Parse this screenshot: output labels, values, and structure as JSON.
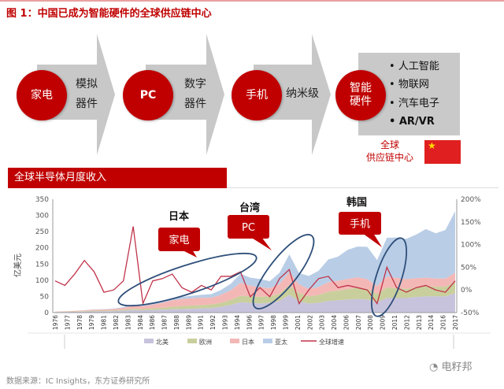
{
  "title": "图 1：中国已成为智能硬件的全球供应链中心",
  "flow": {
    "stages": [
      {
        "circle": "家电",
        "desc_line1": "模拟",
        "desc_line2": "器件"
      },
      {
        "circle": "PC",
        "desc_line1": "数字",
        "desc_line2": "器件"
      },
      {
        "circle": "手机",
        "desc_line1": "纳米级",
        "desc_line2": ""
      }
    ],
    "final_circle_line1": "智能",
    "final_circle_line2": "硬件",
    "bullets": [
      "人工智能",
      "物联网",
      "汽车电子",
      "AR/VR"
    ],
    "hub_line1": "全球",
    "hub_line2": "供应链中心",
    "flag_color": "#e02020"
  },
  "banner": "全球半导体月度收入",
  "source": "数据来源：IC Insights，东方证券研究所",
  "watermark": "电籽邦",
  "colors": {
    "accent": "#c00000",
    "americas": "#c7c3dc",
    "europe": "#c9cf9c",
    "japan": "#f3b8b6",
    "asia": "#b9cde6",
    "growth": "#c0334a",
    "ellipse": "#2f4f7a"
  },
  "chart_data": {
    "type": "area",
    "title": "全球半导体月度收入",
    "ylabel": "亿美元",
    "ylim": [
      0,
      350
    ],
    "yticks": [
      "0",
      "50",
      "100",
      "150",
      "200",
      "250",
      "300",
      "350"
    ],
    "y2lim": [
      -50,
      200
    ],
    "y2ticks": [
      "-50%",
      "0%",
      "50%",
      "100%",
      "150%",
      "200%"
    ],
    "x_range": [
      1976,
      2017
    ],
    "xtick_labels": [
      "1976",
      "1977",
      "1978",
      "1979",
      "1981",
      "1982",
      "1983",
      "1984",
      "1986",
      "1987",
      "1988",
      "1989",
      "1991",
      "1992",
      "1993",
      "1994",
      "1996",
      "1997",
      "1998",
      "1999",
      "2001",
      "2002",
      "2003",
      "2004",
      "2006",
      "2007",
      "2008",
      "2009",
      "2011",
      "2012",
      "2013",
      "2014",
      "2016",
      "2017"
    ],
    "years": [
      1976,
      1977,
      1978,
      1979,
      1980,
      1981,
      1982,
      1983,
      1984,
      1985,
      1986,
      1987,
      1988,
      1989,
      1990,
      1991,
      1992,
      1993,
      1994,
      1995,
      1996,
      1997,
      1998,
      1999,
      2000,
      2001,
      2002,
      2003,
      2004,
      2005,
      2006,
      2007,
      2008,
      2009,
      2010,
      2011,
      2012,
      2013,
      2014,
      2015,
      2016,
      2017
    ],
    "series": [
      {
        "name": "北美",
        "axis": "left",
        "stacked": true,
        "values": [
          1.5,
          2,
          2.5,
          3,
          4,
          4,
          4.5,
          6,
          8,
          7,
          8,
          9,
          10,
          11,
          12,
          13,
          14,
          18,
          24,
          32,
          30,
          28,
          30,
          36,
          55,
          35,
          28,
          30,
          36,
          38,
          40,
          42,
          40,
          32,
          45,
          45,
          45,
          48,
          50,
          50,
          50,
          60
        ]
      },
      {
        "name": "欧洲",
        "axis": "left",
        "stacked": true,
        "values": [
          0.5,
          0.8,
          1,
          1.5,
          2,
          2,
          2.5,
          3,
          4,
          4,
          5,
          6,
          8,
          9,
          10,
          10,
          11,
          12,
          15,
          20,
          20,
          21,
          20,
          22,
          30,
          25,
          22,
          24,
          28,
          30,
          32,
          35,
          33,
          25,
          33,
          30,
          28,
          30,
          32,
          30,
          30,
          35
        ]
      },
      {
        "name": "日本",
        "axis": "left",
        "stacked": true,
        "values": [
          1,
          1.5,
          2,
          2.5,
          3,
          3.5,
          4,
          6,
          10,
          9,
          12,
          15,
          20,
          22,
          22,
          23,
          21,
          25,
          30,
          40,
          33,
          30,
          25,
          30,
          40,
          27,
          23,
          25,
          30,
          30,
          32,
          32,
          30,
          25,
          33,
          32,
          30,
          28,
          26,
          25,
          25,
          28
        ]
      },
      {
        "name": "亚太",
        "axis": "left",
        "stacked": true,
        "values": [
          0,
          0,
          0,
          0.5,
          1,
          1,
          1.5,
          2,
          3,
          3,
          4,
          5,
          6,
          7,
          8,
          9,
          11,
          15,
          20,
          28,
          25,
          25,
          22,
          35,
          55,
          35,
          40,
          50,
          70,
          75,
          90,
          95,
          100,
          80,
          120,
          125,
          125,
          135,
          150,
          140,
          150,
          190
        ]
      },
      {
        "name": "全球增速",
        "axis": "right",
        "type": "line",
        "values": [
          20,
          10,
          35,
          65,
          40,
          -5,
          0,
          20,
          140,
          -30,
          20,
          25,
          35,
          5,
          -5,
          10,
          0,
          30,
          30,
          40,
          -15,
          5,
          -15,
          25,
          45,
          -30,
          0,
          25,
          30,
          5,
          10,
          5,
          0,
          -30,
          50,
          5,
          -5,
          5,
          10,
          0,
          -5,
          20
        ]
      }
    ],
    "legend": [
      "北美",
      "欧洲",
      "日本",
      "亚太",
      "全球增速"
    ],
    "legend_position": "bottom",
    "annotations": [
      {
        "region": "日本",
        "label": "家电"
      },
      {
        "region": "台湾",
        "label": "PC"
      },
      {
        "region": "韩国",
        "label": "手机"
      }
    ]
  }
}
